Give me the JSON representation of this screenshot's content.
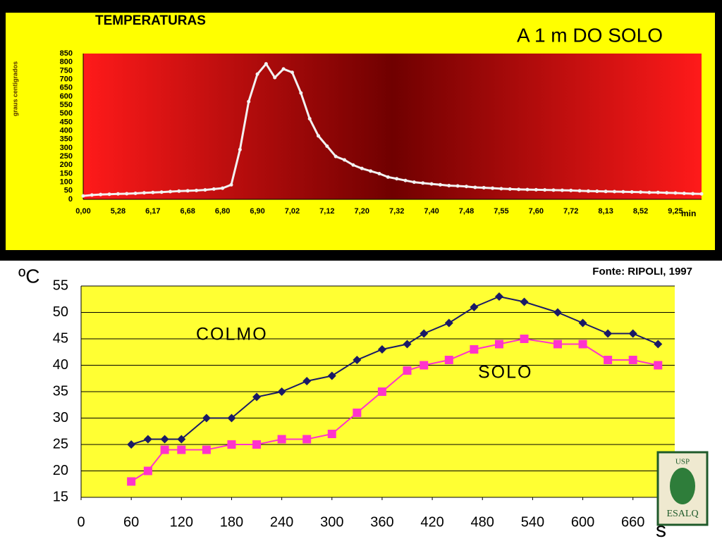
{
  "chart_data": [
    {
      "type": "line",
      "title": "TEMPERATURAS",
      "subtitle": "A 1 m DO SOLO",
      "y_label": "graus centigrados",
      "x_label": "min",
      "categories": [
        "0,00",
        null,
        null,
        null,
        "5,28",
        null,
        null,
        null,
        "6,17",
        null,
        null,
        null,
        "6,68",
        null,
        null,
        null,
        "6,80",
        null,
        null,
        null,
        "6,90",
        null,
        null,
        null,
        "7,02",
        null,
        null,
        null,
        "7,12",
        null,
        null,
        null,
        "7,20",
        null,
        null,
        null,
        "7,32",
        null,
        null,
        null,
        "7,40",
        null,
        null,
        null,
        "7,48",
        null,
        null,
        null,
        "7,55",
        null,
        null,
        null,
        "7,60",
        null,
        null,
        null,
        "7,72",
        null,
        null,
        null,
        "8,13",
        null,
        null,
        null,
        "8,52",
        null,
        null,
        null,
        "9,25",
        null,
        null,
        null
      ],
      "series": [
        {
          "name": null,
          "color": "#f2f2f2",
          "values": [
            20,
            25,
            28,
            30,
            32,
            33,
            35,
            38,
            40,
            42,
            45,
            48,
            50,
            52,
            55,
            60,
            65,
            85,
            290,
            570,
            730,
            790,
            710,
            760,
            740,
            620,
            470,
            370,
            310,
            250,
            230,
            200,
            180,
            165,
            150,
            130,
            120,
            110,
            100,
            95,
            90,
            85,
            80,
            78,
            75,
            70,
            68,
            65,
            62,
            60,
            58,
            57,
            56,
            55,
            54,
            53,
            52,
            50,
            48,
            47,
            46,
            45,
            44,
            43,
            42,
            40,
            40,
            38,
            37,
            35,
            33,
            32
          ]
        }
      ],
      "ylim": [
        0,
        850
      ],
      "yticks": [
        0,
        50,
        100,
        150,
        200,
        250,
        300,
        350,
        400,
        450,
        500,
        550,
        600,
        650,
        700,
        750,
        800,
        850
      ],
      "grid": false
    },
    {
      "type": "line",
      "y_label": "ºC",
      "x_label": "s",
      "source": "Fonte: RIPOLI, 1997",
      "annotations": [
        "COLMO",
        "SOLO"
      ],
      "x": [
        60,
        80,
        100,
        120,
        150,
        180,
        210,
        240,
        270,
        300,
        330,
        360,
        390,
        410,
        440,
        470,
        500,
        530,
        570,
        600,
        630,
        660,
        690
      ],
      "series": [
        {
          "name": "COLMO",
          "color": "#1a1a66",
          "marker": "diamond",
          "values": [
            25,
            26,
            26,
            26,
            30,
            30,
            34,
            35,
            37,
            38,
            41,
            43,
            44,
            46,
            48,
            51,
            53,
            52,
            50,
            48,
            46,
            46,
            44
          ]
        },
        {
          "name": "SOLO",
          "color": "#ff33cc",
          "marker": "square",
          "values": [
            18,
            20,
            24,
            24,
            24,
            25,
            25,
            26,
            26,
            27,
            31,
            35,
            39,
            40,
            41,
            43,
            44,
            45,
            44,
            44,
            41,
            41,
            40
          ]
        }
      ],
      "xlim": [
        0,
        710
      ],
      "xticks": [
        0,
        60,
        120,
        180,
        240,
        300,
        360,
        420,
        480,
        540,
        600,
        660
      ],
      "ylim": [
        15,
        55
      ],
      "yticks": [
        15,
        20,
        25,
        30,
        35,
        40,
        45,
        50,
        55
      ],
      "grid": true
    }
  ],
  "logo": {
    "top": "USP",
    "bottom": "ESALQ"
  }
}
